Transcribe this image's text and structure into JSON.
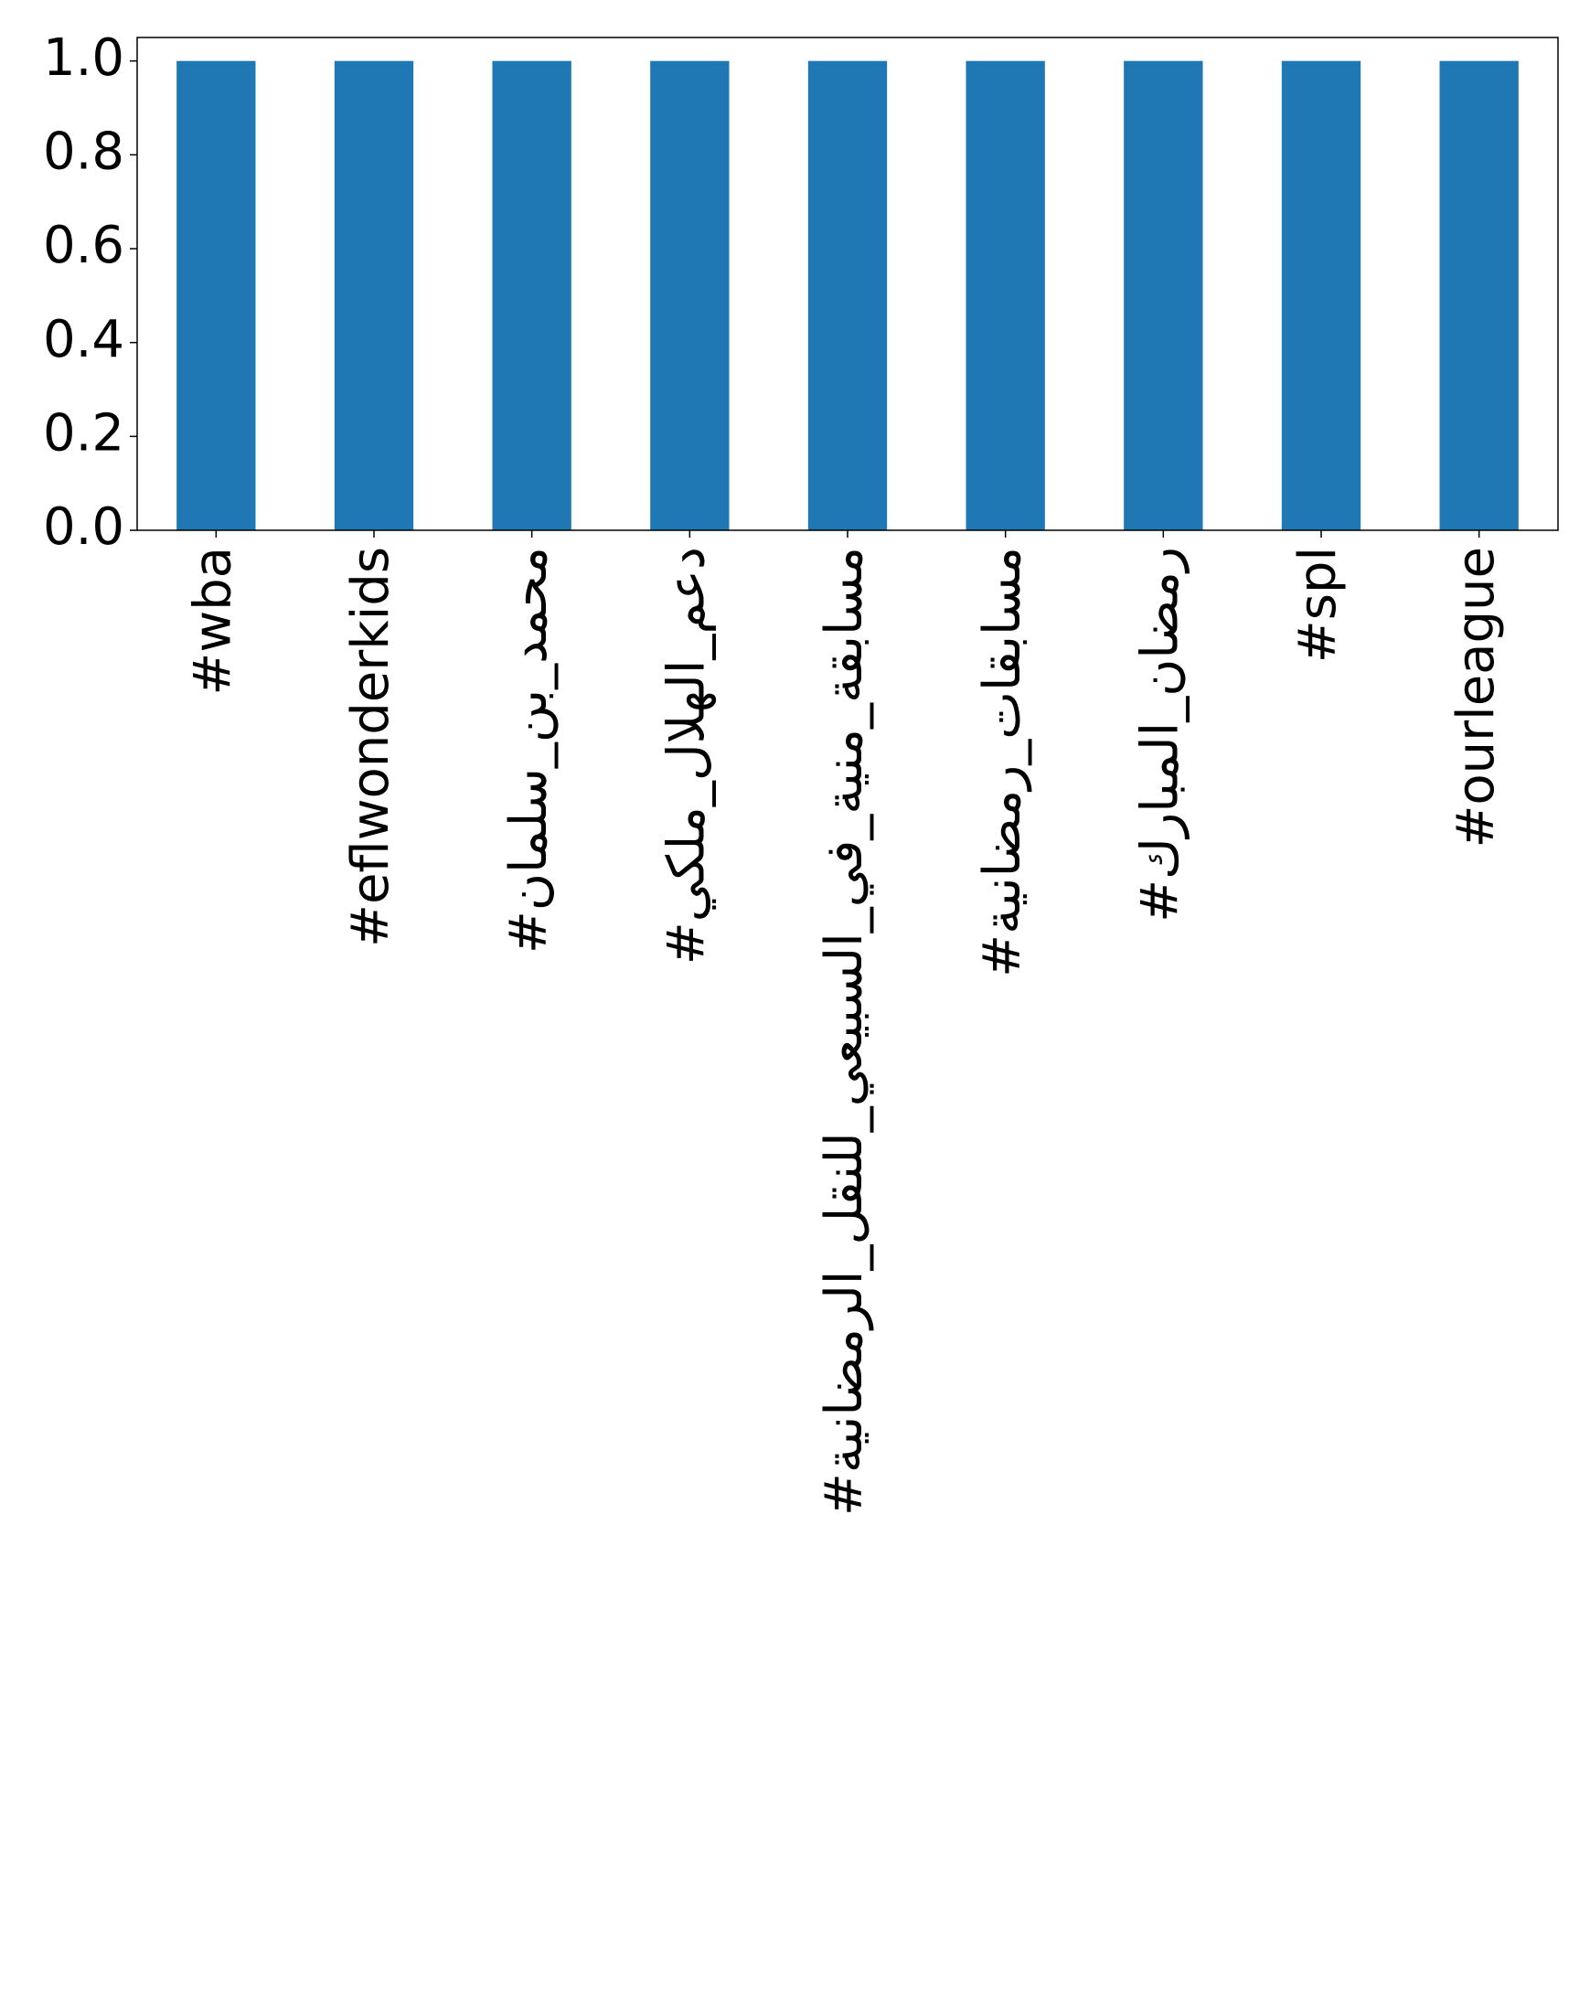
{
  "chart_data": {
    "type": "bar",
    "categories": [
      "#wba",
      "#eflwonderkids",
      "#محمد_بن_سلمان",
      "#دعم_الهلال_ملكي",
      "#مسابقة_منية_في_السبيعي_للنقل_الرمضانية",
      "#مسابقات_رمضانية",
      "#رمضان_المبارك",
      "#spl",
      "#ourleague"
    ],
    "values": [
      1,
      1,
      1,
      1,
      1,
      1,
      1,
      1,
      1
    ],
    "color": "#1f77b4",
    "ylim": [
      0,
      1.05
    ],
    "yticks": [
      {
        "value": 0,
        "label": "0.0"
      },
      {
        "value": 0.2,
        "label": "0.2"
      },
      {
        "value": 0.4,
        "label": "0.4"
      },
      {
        "value": 0.6,
        "label": "0.6"
      },
      {
        "value": 0.8,
        "label": "0.8"
      },
      {
        "value": 1,
        "label": "1.0"
      }
    ]
  }
}
